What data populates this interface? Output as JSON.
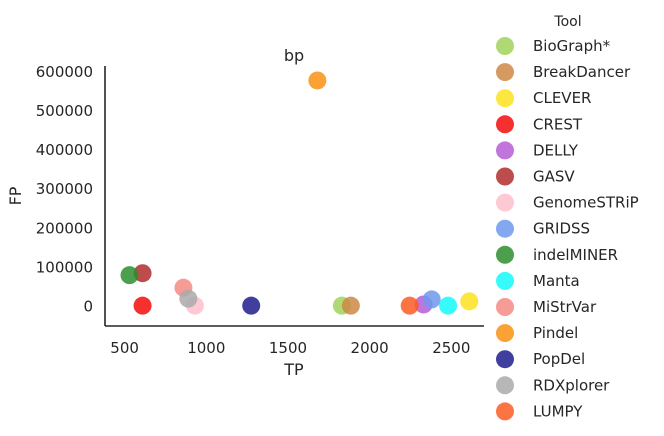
{
  "chart_data": {
    "type": "scatter",
    "title": "bp",
    "xlabel": "TP",
    "ylabel": "FP",
    "xlim": [
      380,
      2700
    ],
    "ylim": [
      -50000,
      615000
    ],
    "xticks": [
      500,
      1000,
      1500,
      2000,
      2500
    ],
    "yticks": [
      0,
      100000,
      200000,
      300000,
      400000,
      500000,
      600000
    ],
    "grid": false,
    "legend": {
      "title": "Tool",
      "placement": "right-outside"
    },
    "series": [
      {
        "name": "BioGraph*",
        "color": "#a1d35a",
        "points": [
          [
            1830,
            2000
          ]
        ]
      },
      {
        "name": "BreakDancer",
        "color": "#cd8847",
        "points": [
          [
            1885,
            2000
          ]
        ]
      },
      {
        "name": "CLEVER",
        "color": "#fde21f",
        "points": [
          [
            2610,
            13000
          ]
        ]
      },
      {
        "name": "CREST",
        "color": "#f40b0b",
        "points": [
          [
            610,
            2000
          ]
        ]
      },
      {
        "name": "DELLY",
        "color": "#b55cd6",
        "points": [
          [
            2330,
            5000
          ]
        ]
      },
      {
        "name": "GASV",
        "color": "#b22e2e",
        "points": [
          [
            610,
            85000
          ]
        ]
      },
      {
        "name": "GenomeSTRiP",
        "color": "#ffc0cc",
        "points": [
          [
            930,
            2000
          ]
        ]
      },
      {
        "name": "GRIDSS",
        "color": "#6e99ec",
        "points": [
          [
            2380,
            18000
          ]
        ]
      },
      {
        "name": "indelMINER",
        "color": "#2d8e2d",
        "points": [
          [
            530,
            80000
          ]
        ]
      },
      {
        "name": "Manta",
        "color": "#14fafa",
        "points": [
          [
            2480,
            2000
          ]
        ]
      },
      {
        "name": "MiStrVar",
        "color": "#f58a82",
        "points": [
          [
            860,
            48000
          ]
        ]
      },
      {
        "name": "Pindel",
        "color": "#f99213",
        "points": [
          [
            1680,
            578000
          ]
        ]
      },
      {
        "name": "PopDel",
        "color": "#1e1d8d",
        "points": [
          [
            1275,
            2000
          ]
        ]
      },
      {
        "name": "RDXplorer",
        "color": "#aaaaaa",
        "points": [
          [
            890,
            20000
          ]
        ]
      },
      {
        "name": "LUMPY",
        "color": "#fd5c22",
        "points": [
          [
            2245,
            2000
          ]
        ]
      }
    ]
  }
}
